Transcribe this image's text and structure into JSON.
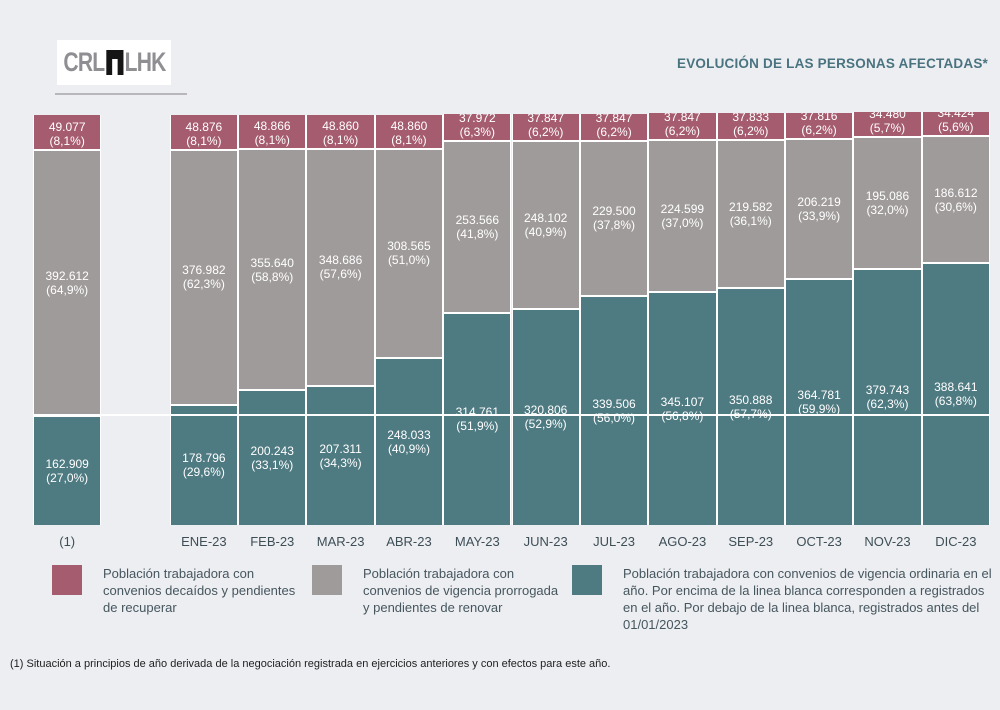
{
  "header": {
    "logo_left": "CRL",
    "logo_right": "LHK",
    "title": "EVOLUCIÓN DE LAS PERSONAS AFECTADAS*"
  },
  "chart_data": {
    "type": "bar",
    "variant": "stacked-vertical",
    "title": "EVOLUCIÓN DE LAS PERSONAS AFECTADAS*",
    "xlabel": "",
    "ylabel": "",
    "grid": false,
    "legend_position": "bottom",
    "categories": [
      "(1)",
      "ENE-23",
      "FEB-23",
      "MAR-23",
      "ABR-23",
      "MAY-23",
      "JUN-23",
      "JUL-23",
      "AGO-23",
      "SEP-23",
      "OCT-23",
      "NOV-23",
      "DIC-23"
    ],
    "gap_after_first_column": true,
    "series": [
      {
        "name": "Población trabajadora con convenios decaídos y pendientes de recuperar",
        "color": "#a65c6f",
        "position": "top",
        "values": [
          49077,
          48876,
          48866,
          48860,
          48860,
          37972,
          37847,
          37847,
          37847,
          37833,
          37816,
          34480,
          34424
        ],
        "labels": [
          "49.077",
          "48.876",
          "48.866",
          "48.860",
          "48.860",
          "37.972",
          "37.847",
          "37.847",
          "37.847",
          "37.833",
          "37.816",
          "34.480",
          "34.424"
        ],
        "pcts": [
          "(8,1%)",
          "(8,1%)",
          "(8,1%)",
          "(8,1%)",
          "(8,1%)",
          "(6,3%)",
          "(6,2%)",
          "(6,2%)",
          "(6,2%)",
          "(6,2%)",
          "(6,2%)",
          "(5,7%)",
          "(5,6%)"
        ]
      },
      {
        "name": "Población trabajadora con convenios de vigencia prorrogada y pendientes de renovar",
        "color": "#a09b9b",
        "position": "middle",
        "values": [
          392612,
          376982,
          355640,
          348686,
          308565,
          253566,
          248102,
          229500,
          224599,
          219582,
          206219,
          195086,
          186612
        ],
        "labels": [
          "392.612",
          "376.982",
          "355.640",
          "348.686",
          "308.565",
          "253.566",
          "248.102",
          "229.500",
          "224.599",
          "219.582",
          "206.219",
          "195.086",
          "186.612"
        ],
        "pcts": [
          "(64,9%)",
          "(62,3%)",
          "(58,8%)",
          "(57,6%)",
          "(51,0%)",
          "(41,8%)",
          "(40,9%)",
          "(37,8%)",
          "(37,0%)",
          "(36,1%)",
          "(33,9%)",
          "(32,0%)",
          "(30,6%)"
        ]
      },
      {
        "name": "Población trabajadora con convenios de vigencia ordinaria en el año",
        "color": "#4e7a81",
        "position": "bottom",
        "values": [
          162909,
          178796,
          200243,
          207311,
          248033,
          314761,
          320806,
          339506,
          345107,
          350888,
          364781,
          379743,
          388641
        ],
        "labels": [
          "162.909",
          "178.796",
          "200.243",
          "207.311",
          "248.033",
          "314.761",
          "320.806",
          "339.506",
          "345.107",
          "350.888",
          "364.781",
          "379.743",
          "388.641"
        ],
        "pcts": [
          "(27,0%)",
          "(29,6%)",
          "(33,1%)",
          "(34,3%)",
          "(40,9%)",
          "(51,9%)",
          "(52,9%)",
          "(56,0%)",
          "(56,8%)",
          "(57,7%)",
          "(59,9%)",
          "(62,3%)",
          "(63,8%)"
        ]
      }
    ],
    "baseline": {
      "value": 162909,
      "color": "#ffffff",
      "meaning": "Por encima de la linea blanca: registrados en el año. Por debajo: registrados antes del 01/01/2023"
    }
  },
  "legend": {
    "items": [
      {
        "color": "#a65c6f",
        "text": "Población trabajadora con convenios decaídos y pendientes de recuperar"
      },
      {
        "color": "#a09b9b",
        "text": "Población trabajadora con convenios de vigencia prorrogada y pendientes de renovar"
      },
      {
        "color": "#4e7a81",
        "text": "Población trabajadora con convenios de vigencia ordinaria en el año. Por encima de la linea blanca corresponden a registrados en el año. Por debajo de la linea blanca, registrados antes del 01/01/2023"
      }
    ]
  },
  "footnote": {
    "text": "(1) Situación a principios de año derivada de la negociación registrada en ejercicios anteriores y con efectos para este año."
  },
  "colors": {
    "background": "#eceef2",
    "title": "#4a7380",
    "axis_text": "#3e4e56",
    "legend_text": "#46565e",
    "separator": "#ffffff"
  }
}
